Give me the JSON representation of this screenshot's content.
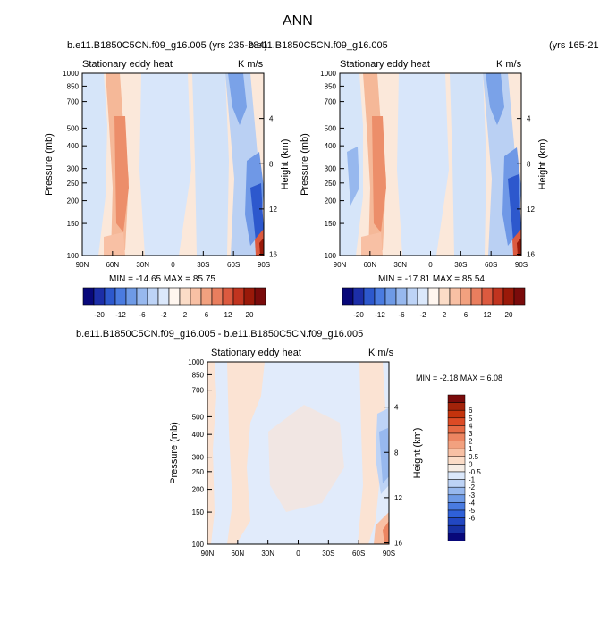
{
  "page": {
    "title": "ANN"
  },
  "panel1": {
    "header_left": "b.e11.B1850C5CN.f09_g16.005 (yrs 235-284)",
    "inner_title": "Stationary eddy heat",
    "units": "K m/s",
    "min_max": "MIN = -14.65  MAX =  85.75"
  },
  "panel2": {
    "header_left": "b.e11.B1850C5CN.f09_g16.005",
    "header_right": "(yrs 165-21",
    "inner_title": "Stationary eddy heat",
    "units": "K m/s",
    "min_max": "MIN = -17.81  MAX =  85.54"
  },
  "panel3": {
    "header": "b.e11.B1850C5CN.f09_g16.005 - b.e11.B1850C5CN.f09_g16.005",
    "inner_title": "Stationary eddy heat",
    "units": "K m/s",
    "min_max": "MIN =  -2.18  MAX =   6.08"
  },
  "axes": {
    "ylabel": "Pressure (mb)",
    "ylabel_right": "Height (km)"
  },
  "colorbar_main": {
    "colors": [
      "#08087a",
      "#1c2ea8",
      "#2d58cd",
      "#4a7be0",
      "#6e9ae6",
      "#97b8ee",
      "#bdd3f6",
      "#dbe8fb",
      "#fff6ef",
      "#fbdcc7",
      "#f8c0a4",
      "#f2a17f",
      "#e97e5e",
      "#dc5a3f",
      "#c1341f",
      "#9a1909",
      "#7a0b0b"
    ],
    "labels": [
      "-20",
      "-12",
      "-6",
      "-2",
      "2",
      "6",
      "12",
      "20"
    ]
  },
  "colorbar_diff": {
    "colors": [
      "#08087a",
      "#1730a3",
      "#2247c2",
      "#2f60d8",
      "#4a7be0",
      "#6e9ae6",
      "#97b8ee",
      "#bdd3f6",
      "#dbe8fb",
      "#f6ede5",
      "#fbdcc7",
      "#f8c0a4",
      "#f2a17f",
      "#ec8561",
      "#e66a44",
      "#dc4b25",
      "#c4330c",
      "#a3230a",
      "#7a0b0b"
    ],
    "labels": [
      "-6",
      "-5",
      "-4",
      "-3",
      "-2",
      "-1",
      "-0.5",
      "0",
      "0.5",
      "1",
      "2",
      "3",
      "4",
      "5",
      "6"
    ]
  },
  "chart_data": [
    {
      "type": "heatmap",
      "title": "Stationary eddy heat",
      "xlabel": "",
      "ylabel": "Pressure (mb)",
      "y2label": "Height (km)",
      "x_ticks": [
        "90N",
        "60N",
        "30N",
        "0",
        "30S",
        "60S",
        "90S"
      ],
      "y_ticks": [
        100,
        150,
        200,
        250,
        300,
        400,
        500,
        700,
        850,
        1000
      ],
      "y2_ticks": [
        16,
        12,
        8,
        4
      ],
      "ylim": [
        1000,
        100
      ],
      "min": -14.65,
      "max": 85.75,
      "series": [
        {
          "lat": 58,
          "value": 6
        },
        {
          "lat": 50,
          "value": 12
        },
        {
          "lat": -80,
          "value": -12
        },
        {
          "lat": -85,
          "value": 20
        }
      ]
    },
    {
      "type": "heatmap",
      "title": "Stationary eddy heat",
      "xlabel": "",
      "ylabel": "Pressure (mb)",
      "y2label": "Height (km)",
      "x_ticks": [
        "90N",
        "60N",
        "30N",
        "0",
        "30S",
        "60S",
        "90S"
      ],
      "y_ticks": [
        100,
        150,
        200,
        250,
        300,
        400,
        500,
        700,
        850,
        1000
      ],
      "y2_ticks": [
        16,
        12,
        8,
        4
      ],
      "ylim": [
        1000,
        100
      ],
      "min": -17.81,
      "max": 85.54,
      "series": [
        {
          "lat": 58,
          "value": 6
        },
        {
          "lat": 50,
          "value": 12
        },
        {
          "lat": -80,
          "value": -12
        },
        {
          "lat": -85,
          "value": 20
        }
      ]
    },
    {
      "type": "heatmap",
      "title": "Stationary eddy heat",
      "xlabel": "",
      "ylabel": "Pressure (mb)",
      "y2label": "Height (km)",
      "x_ticks": [
        "90N",
        "60N",
        "30N",
        "0",
        "30S",
        "60S",
        "90S"
      ],
      "y_ticks": [
        100,
        150,
        200,
        250,
        300,
        400,
        500,
        700,
        850,
        1000
      ],
      "y2_ticks": [
        16,
        12,
        8,
        4
      ],
      "ylim": [
        1000,
        100
      ],
      "min": -2.18,
      "max": 6.08,
      "series": [
        {
          "lat": -75,
          "value": -2
        },
        {
          "lat": -82,
          "value": 1
        }
      ]
    }
  ]
}
